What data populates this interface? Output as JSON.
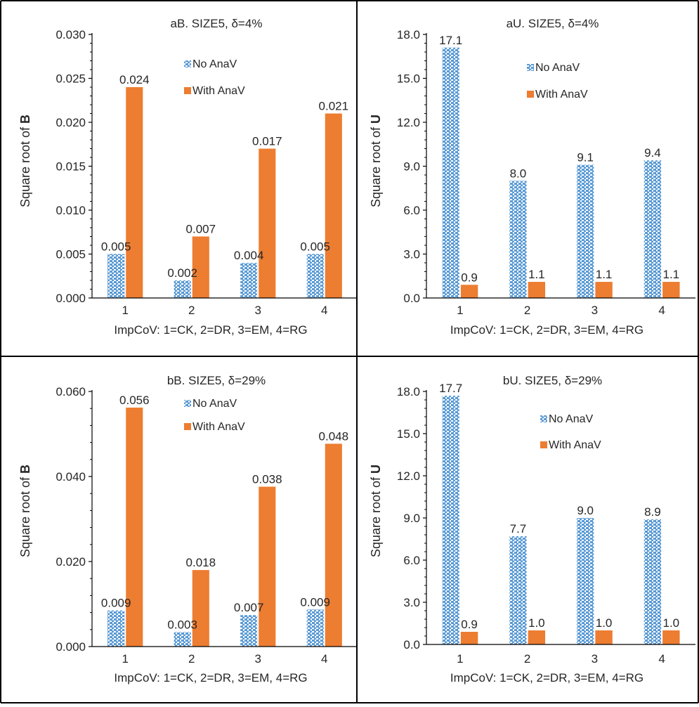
{
  "colors": {
    "no_anav": "#5b9bd5",
    "no_anav_pattern_bg": "#ffffff",
    "with_anav": "#ed7d31",
    "border": "#000000",
    "axis": "#000000",
    "text": "#262626"
  },
  "chart_data": [
    {
      "type": "bar",
      "panel": "top-left",
      "title": "aB. SIZE5, δ=4%",
      "ylabel_prefix": "Square root of ",
      "ylabel_bold": "B",
      "xlabel": "ImpCoV: 1=CK, 2=DR, 3=EM, 4=RG",
      "categories": [
        "1",
        "2",
        "3",
        "4"
      ],
      "ylim": [
        0,
        0.03
      ],
      "y_ticks": [
        0,
        0.005,
        0.01,
        0.015,
        0.02,
        0.025,
        0.03
      ],
      "y_tick_labels": [
        "0.000",
        "0.005",
        "0.010",
        "0.015",
        "0.020",
        "0.025",
        "0.030"
      ],
      "series": [
        {
          "name": "No AnaV",
          "values": [
            0.005,
            0.002,
            0.004,
            0.005
          ],
          "labels": [
            "0.005",
            "0.002",
            "0.004",
            "0.005"
          ]
        },
        {
          "name": "With AnaV",
          "values": [
            0.024,
            0.007,
            0.017,
            0.021
          ],
          "labels": [
            "0.024",
            "0.007",
            "0.017",
            "0.021"
          ]
        }
      ],
      "legend": "top-right",
      "grid": false
    },
    {
      "type": "bar",
      "panel": "top-right",
      "title": "aU. SIZE5, δ=4%",
      "ylabel_prefix": "Square root of ",
      "ylabel_bold": "U",
      "xlabel": "ImpCoV: 1=CK, 2=DR, 3=EM, 4=RG",
      "categories": [
        "1",
        "2",
        "3",
        "4"
      ],
      "ylim": [
        0,
        18
      ],
      "y_ticks": [
        0,
        3,
        6,
        9,
        12,
        15,
        18
      ],
      "y_tick_labels": [
        "0.0",
        "3.0",
        "6.0",
        "9.0",
        "12.0",
        "15.0",
        "18.0"
      ],
      "series": [
        {
          "name": "No AnaV",
          "values": [
            17.1,
            8.0,
            9.1,
            9.4
          ],
          "labels": [
            "17.1",
            "8.0",
            "9.1",
            "9.4"
          ]
        },
        {
          "name": "With AnaV",
          "values": [
            0.9,
            1.1,
            1.1,
            1.1
          ],
          "labels": [
            "0.9",
            "1.1",
            "1.1",
            "1.1"
          ]
        }
      ],
      "legend": "top-right",
      "grid": false
    },
    {
      "type": "bar",
      "panel": "bottom-left",
      "title": "bB. SIZE5, δ=29%",
      "ylabel_prefix": "Square root of ",
      "ylabel_bold": "B",
      "xlabel": "ImpCoV: 1=CK, 2=DR, 3=EM, 4=RG",
      "categories": [
        "1",
        "2",
        "3",
        "4"
      ],
      "ylim": [
        0,
        0.06
      ],
      "y_ticks": [
        0,
        0.02,
        0.04,
        0.06
      ],
      "y_tick_labels": [
        "0.000",
        "0.020",
        "0.040",
        "0.060"
      ],
      "series": [
        {
          "name": "No AnaV",
          "values": [
            0.0085,
            0.0034,
            0.0074,
            0.0087
          ],
          "labels": [
            "0.009",
            "0.003",
            "0.007",
            "0.009"
          ]
        },
        {
          "name": "With AnaV",
          "values": [
            0.0562,
            0.018,
            0.0376,
            0.0477
          ],
          "labels": [
            "0.056",
            "0.018",
            "0.038",
            "0.048"
          ]
        }
      ],
      "legend": "top-right",
      "grid": false
    },
    {
      "type": "bar",
      "panel": "bottom-right",
      "title": "bU. SIZE5, δ=29%",
      "ylabel_prefix": "Square root of ",
      "ylabel_bold": "U",
      "xlabel": "ImpCoV: 1=CK, 2=DR, 3=EM, 4=RG",
      "categories": [
        "1",
        "2",
        "3",
        "4"
      ],
      "ylim": [
        0,
        18
      ],
      "y_ticks": [
        0,
        3,
        6,
        9,
        12,
        15,
        18
      ],
      "y_tick_labels": [
        "0.0",
        "3.0",
        "6.0",
        "9.0",
        "12.0",
        "15.0",
        "18.0"
      ],
      "series": [
        {
          "name": "No AnaV",
          "values": [
            17.7,
            7.7,
            9.0,
            8.9
          ],
          "labels": [
            "17.7",
            "7.7",
            "9.0",
            "8.9"
          ]
        },
        {
          "name": "With AnaV",
          "values": [
            0.9,
            1.0,
            1.0,
            1.0
          ],
          "labels": [
            "0.9",
            "1.0",
            "1.0",
            "1.0"
          ]
        }
      ],
      "legend": "top-right",
      "grid": false
    }
  ]
}
